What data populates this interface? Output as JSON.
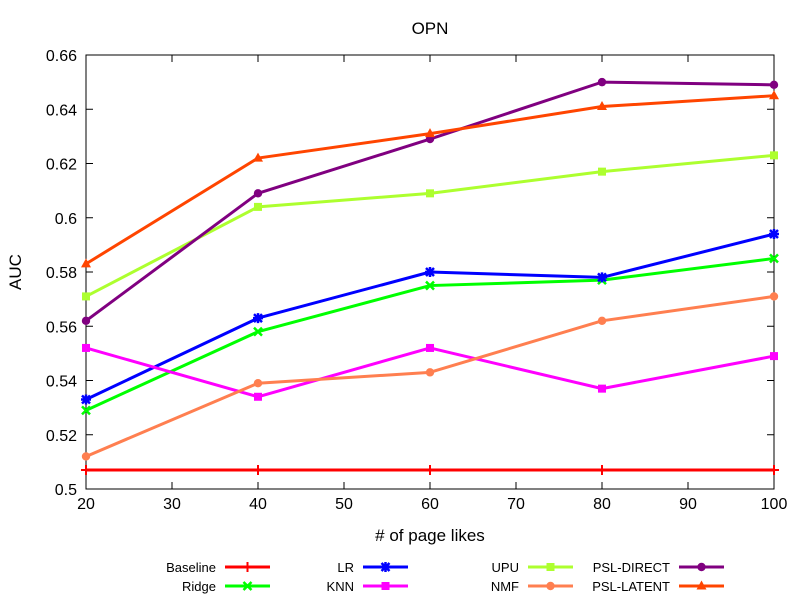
{
  "chart_data": {
    "type": "line",
    "title": "OPN",
    "xlabel": "# of page likes",
    "ylabel": "AUC",
    "xlim": [
      20,
      100
    ],
    "ylim": [
      0.5,
      0.66
    ],
    "xticks": [
      20,
      30,
      40,
      50,
      60,
      70,
      80,
      90,
      100
    ],
    "xtick_labels": [
      "20",
      "30",
      "40",
      "50",
      "60",
      "70",
      "80",
      "90",
      "100"
    ],
    "yticks": [
      0.5,
      0.52,
      0.54,
      0.56,
      0.58,
      0.6,
      0.62,
      0.64,
      0.66
    ],
    "ytick_labels": [
      "0.5",
      "0.52",
      "0.54",
      "0.56",
      "0.58",
      "0.6",
      "0.62",
      "0.64",
      "0.66"
    ],
    "grid": false,
    "legend_position": "bottom",
    "x": [
      20,
      40,
      60,
      80,
      100
    ],
    "series": [
      {
        "name": "Baseline",
        "color": "#ff0000",
        "marker": "plus",
        "values": [
          0.507,
          0.507,
          0.507,
          0.507,
          0.507
        ]
      },
      {
        "name": "Ridge",
        "color": "#00ff00",
        "marker": "cross",
        "values": [
          0.529,
          0.558,
          0.575,
          0.577,
          0.585
        ]
      },
      {
        "name": "LR",
        "color": "#0000ff",
        "marker": "star",
        "values": [
          0.533,
          0.563,
          0.58,
          0.578,
          0.594
        ]
      },
      {
        "name": "KNN",
        "color": "#ff00ff",
        "marker": "square",
        "values": [
          0.552,
          0.534,
          0.552,
          0.537,
          0.549
        ]
      },
      {
        "name": "UPU",
        "color": "#adff2f",
        "marker": "square",
        "values": [
          0.571,
          0.604,
          0.609,
          0.617,
          0.623
        ]
      },
      {
        "name": "NMF",
        "color": "#ff7f50",
        "marker": "circle",
        "values": [
          0.512,
          0.539,
          0.543,
          0.562,
          0.571
        ]
      },
      {
        "name": "PSL-DIRECT",
        "color": "#800080",
        "marker": "circle",
        "values": [
          0.562,
          0.609,
          0.629,
          0.65,
          0.649
        ]
      },
      {
        "name": "PSL-LATENT",
        "color": "#ff4500",
        "marker": "triangle",
        "values": [
          0.583,
          0.622,
          0.631,
          0.641,
          0.645
        ]
      }
    ]
  }
}
